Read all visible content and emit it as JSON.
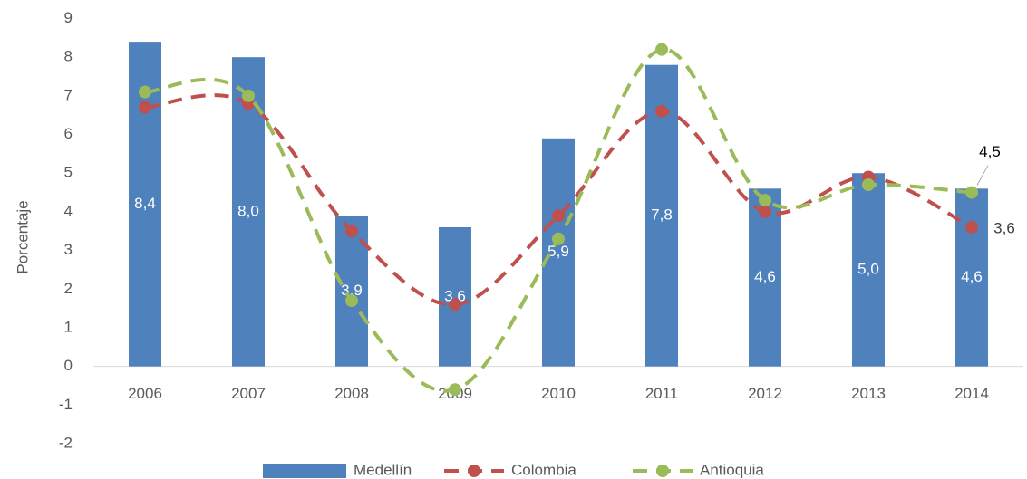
{
  "chart_data": {
    "type": "bar",
    "ylabel": "Porcentaje",
    "categories": [
      "2006",
      "2007",
      "2008",
      "2009",
      "2010",
      "2011",
      "2012",
      "2013",
      "2014"
    ],
    "series": [
      {
        "name": "Medellín",
        "type": "bar",
        "color": "#4f81bd",
        "values": [
          8.4,
          8.0,
          3.9,
          3.6,
          5.9,
          7.8,
          4.6,
          5.0,
          4.6
        ],
        "value_labels": [
          "8,4",
          "8,0",
          "3,9",
          "3,6",
          "5,9",
          "7,8",
          "4,6",
          "5,0",
          "4,6"
        ]
      },
      {
        "name": "Colombia",
        "type": "line",
        "color": "#c0504d",
        "values": [
          6.7,
          6.8,
          3.5,
          1.6,
          3.9,
          6.6,
          4.0,
          4.9,
          3.6
        ],
        "value_labels": [
          null,
          null,
          null,
          null,
          null,
          null,
          null,
          null,
          "3,6"
        ]
      },
      {
        "name": "Antioquia",
        "type": "line",
        "color": "#9bbb59",
        "values": [
          7.1,
          7.0,
          1.7,
          -0.6,
          3.3,
          8.2,
          4.3,
          4.7,
          4.5
        ],
        "value_labels": [
          null,
          null,
          null,
          null,
          null,
          null,
          null,
          null,
          "4,5"
        ]
      }
    ],
    "ylim": [
      -2,
      9
    ],
    "yticks": [
      -2,
      -1,
      0,
      1,
      2,
      3,
      4,
      5,
      6,
      7,
      8,
      9
    ],
    "grid": false,
    "legend": "bottom"
  }
}
